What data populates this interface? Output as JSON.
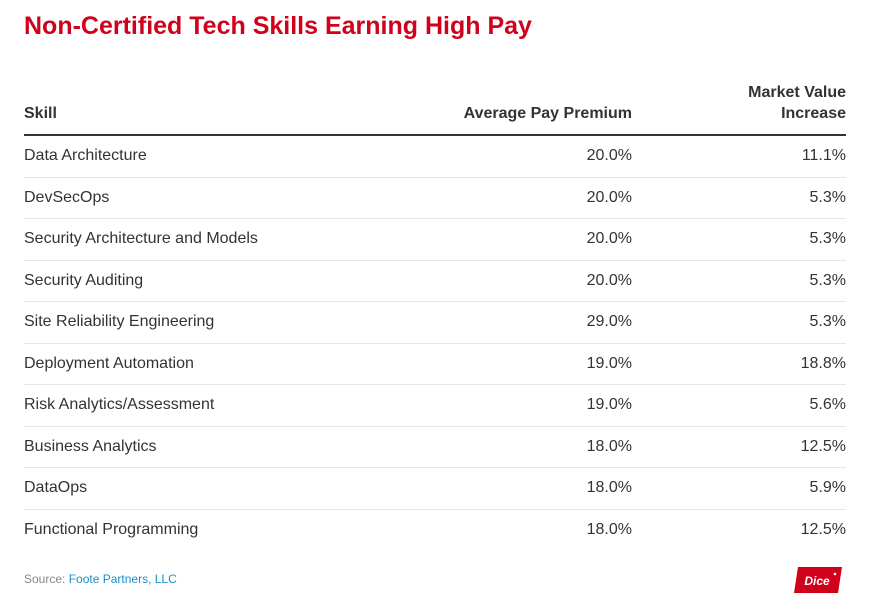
{
  "title": "Non-Certified Tech Skills Earning High Pay",
  "columns": {
    "skill": "Skill",
    "pay_premium": "Average Pay Premium",
    "market_value_line1": "Market Value",
    "market_value_line2": "Increase"
  },
  "chart_data": {
    "type": "table",
    "title": "Non-Certified Tech Skills Earning High Pay",
    "headers": [
      "Skill",
      "Average Pay Premium",
      "Market Value Increase"
    ],
    "rows": [
      [
        "Data Architecture",
        "20.0%",
        "11.1%"
      ],
      [
        "DevSecOps",
        "20.0%",
        "5.3%"
      ],
      [
        "Security Architecture and Models",
        "20.0%",
        "5.3%"
      ],
      [
        "Security Auditing",
        "20.0%",
        "5.3%"
      ],
      [
        "Site Reliability Engineering",
        "29.0%",
        "5.3%"
      ],
      [
        "Deployment Automation",
        "19.0%",
        "18.8%"
      ],
      [
        "Risk Analytics/Assessment",
        "19.0%",
        "5.6%"
      ],
      [
        "Business Analytics",
        "18.0%",
        "12.5%"
      ],
      [
        "DataOps",
        "18.0%",
        "5.9%"
      ],
      [
        "Functional Programming",
        "18.0%",
        "12.5%"
      ]
    ]
  },
  "source": {
    "prefix": "Source: ",
    "link_text": "Foote Partners, LLC"
  },
  "logo": {
    "text": "Dice",
    "color": "#d0021b"
  },
  "colors": {
    "title": "#d0021b",
    "link": "#1a8fc9"
  }
}
